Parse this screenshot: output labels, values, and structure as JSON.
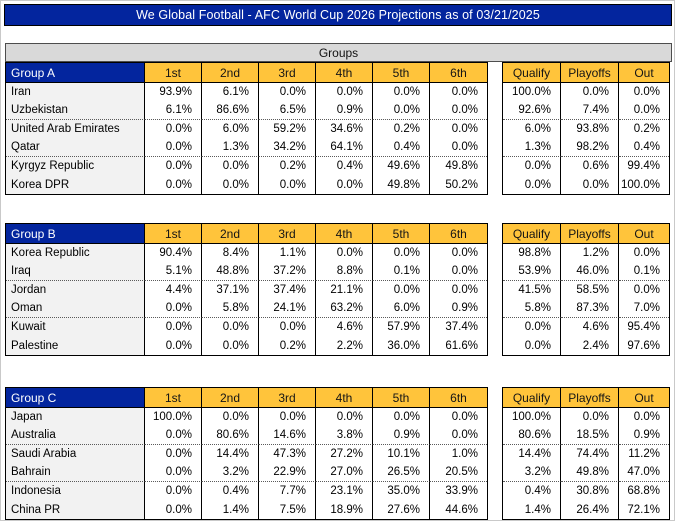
{
  "title": "We Global Football - AFC World Cup 2026 Projections as of 03/21/2025",
  "section_title": "Groups",
  "position_headers": [
    "1st",
    "2nd",
    "3rd",
    "4th",
    "5th",
    "6th"
  ],
  "outcome_headers": [
    "Qualify",
    "Playoffs",
    "Out"
  ],
  "colors": {
    "header_blue": "#03259E",
    "column_header_orange": "#FFC43B",
    "section_band_gray": "#D9D9D9",
    "team_column_gray": "#F2F2F2"
  },
  "groups": [
    {
      "label": "Group A",
      "teams": [
        {
          "name": "Iran",
          "positions": [
            "93.9%",
            "6.1%",
            "0.0%",
            "0.0%",
            "0.0%",
            "0.0%"
          ],
          "outcomes": [
            "100.0%",
            "0.0%",
            "0.0%"
          ]
        },
        {
          "name": "Uzbekistan",
          "positions": [
            "6.1%",
            "86.6%",
            "6.5%",
            "0.9%",
            "0.0%",
            "0.0%"
          ],
          "outcomes": [
            "92.6%",
            "7.4%",
            "0.0%"
          ]
        },
        {
          "name": "United Arab Emirates",
          "positions": [
            "0.0%",
            "6.0%",
            "59.2%",
            "34.6%",
            "0.2%",
            "0.0%"
          ],
          "outcomes": [
            "6.0%",
            "93.8%",
            "0.2%"
          ]
        },
        {
          "name": "Qatar",
          "positions": [
            "0.0%",
            "1.3%",
            "34.2%",
            "64.1%",
            "0.4%",
            "0.0%"
          ],
          "outcomes": [
            "1.3%",
            "98.2%",
            "0.4%"
          ]
        },
        {
          "name": "Kyrgyz Republic",
          "positions": [
            "0.0%",
            "0.0%",
            "0.2%",
            "0.4%",
            "49.6%",
            "49.8%"
          ],
          "outcomes": [
            "0.0%",
            "0.6%",
            "99.4%"
          ]
        },
        {
          "name": "Korea DPR",
          "positions": [
            "0.0%",
            "0.0%",
            "0.0%",
            "0.0%",
            "49.8%",
            "50.2%"
          ],
          "outcomes": [
            "0.0%",
            "0.0%",
            "100.0%"
          ]
        }
      ]
    },
    {
      "label": "Group B",
      "teams": [
        {
          "name": "Korea Republic",
          "positions": [
            "90.4%",
            "8.4%",
            "1.1%",
            "0.0%",
            "0.0%",
            "0.0%"
          ],
          "outcomes": [
            "98.8%",
            "1.2%",
            "0.0%"
          ]
        },
        {
          "name": "Iraq",
          "positions": [
            "5.1%",
            "48.8%",
            "37.2%",
            "8.8%",
            "0.1%",
            "0.0%"
          ],
          "outcomes": [
            "53.9%",
            "46.0%",
            "0.1%"
          ]
        },
        {
          "name": "Jordan",
          "positions": [
            "4.4%",
            "37.1%",
            "37.4%",
            "21.1%",
            "0.0%",
            "0.0%"
          ],
          "outcomes": [
            "41.5%",
            "58.5%",
            "0.0%"
          ]
        },
        {
          "name": "Oman",
          "positions": [
            "0.0%",
            "5.8%",
            "24.1%",
            "63.2%",
            "6.0%",
            "0.9%"
          ],
          "outcomes": [
            "5.8%",
            "87.3%",
            "7.0%"
          ]
        },
        {
          "name": "Kuwait",
          "positions": [
            "0.0%",
            "0.0%",
            "0.0%",
            "4.6%",
            "57.9%",
            "37.4%"
          ],
          "outcomes": [
            "0.0%",
            "4.6%",
            "95.4%"
          ]
        },
        {
          "name": "Palestine",
          "positions": [
            "0.0%",
            "0.0%",
            "0.2%",
            "2.2%",
            "36.0%",
            "61.6%"
          ],
          "outcomes": [
            "0.0%",
            "2.4%",
            "97.6%"
          ]
        }
      ]
    },
    {
      "label": "Group C",
      "teams": [
        {
          "name": "Japan",
          "positions": [
            "100.0%",
            "0.0%",
            "0.0%",
            "0.0%",
            "0.0%",
            "0.0%"
          ],
          "outcomes": [
            "100.0%",
            "0.0%",
            "0.0%"
          ]
        },
        {
          "name": "Australia",
          "positions": [
            "0.0%",
            "80.6%",
            "14.6%",
            "3.8%",
            "0.9%",
            "0.0%"
          ],
          "outcomes": [
            "80.6%",
            "18.5%",
            "0.9%"
          ]
        },
        {
          "name": "Saudi Arabia",
          "positions": [
            "0.0%",
            "14.4%",
            "47.3%",
            "27.2%",
            "10.1%",
            "1.0%"
          ],
          "outcomes": [
            "14.4%",
            "74.4%",
            "11.2%"
          ]
        },
        {
          "name": "Bahrain",
          "positions": [
            "0.0%",
            "3.2%",
            "22.9%",
            "27.0%",
            "26.5%",
            "20.5%"
          ],
          "outcomes": [
            "3.2%",
            "49.8%",
            "47.0%"
          ]
        },
        {
          "name": "Indonesia",
          "positions": [
            "0.0%",
            "0.4%",
            "7.7%",
            "23.1%",
            "35.0%",
            "33.9%"
          ],
          "outcomes": [
            "0.4%",
            "30.8%",
            "68.8%"
          ]
        },
        {
          "name": "China PR",
          "positions": [
            "0.0%",
            "1.4%",
            "7.5%",
            "18.9%",
            "27.6%",
            "44.6%"
          ],
          "outcomes": [
            "1.4%",
            "26.4%",
            "72.1%"
          ]
        }
      ]
    }
  ]
}
